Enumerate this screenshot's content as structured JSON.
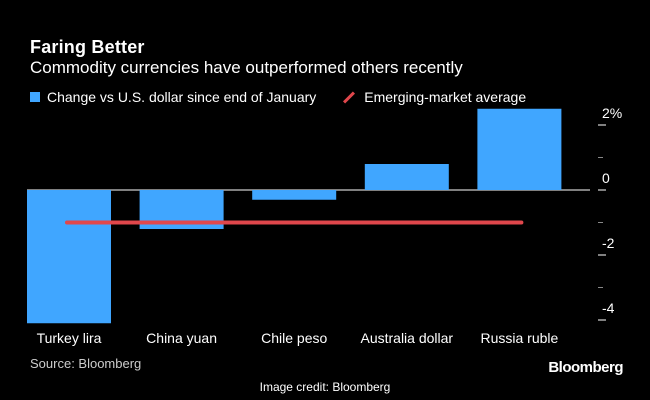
{
  "chart_data": {
    "type": "bar",
    "title": "Faring Better",
    "subtitle": "Commodity currencies have outperformed others recently",
    "categories": [
      "Turkey lira",
      "China yuan",
      "Chile peso",
      "Australia dollar",
      "Russia ruble"
    ],
    "series": [
      {
        "name": "Change vs U.S. dollar since end of January",
        "values": [
          -4.1,
          -1.2,
          -0.3,
          0.8,
          2.5
        ],
        "color": "#40a6ff"
      }
    ],
    "reference_line": {
      "name": "Emerging-market average",
      "value": -1.0,
      "color": "#e0474c"
    },
    "ylim": [
      -4.2,
      2.5
    ],
    "yticks": [
      2,
      0,
      -2,
      -4
    ],
    "ytick_labels": [
      "2%",
      "0",
      "-2",
      "-4"
    ],
    "legend_position": "top-left"
  },
  "legend": {
    "bar_label": "Change vs U.S. dollar since end of January",
    "line_label": "Emerging-market average"
  },
  "footer": {
    "source": "Source: Bloomberg",
    "brand": "Bloomberg",
    "credit": "Image credit: Bloomberg"
  }
}
